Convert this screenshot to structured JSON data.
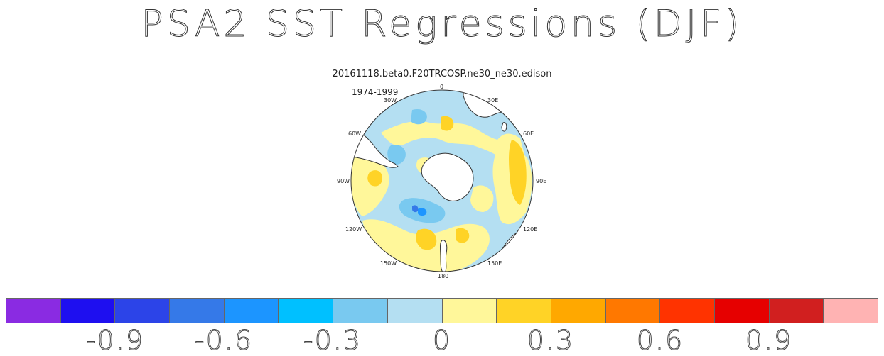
{
  "title": "PSA2 SST Regressions (DJF)",
  "subtitle": "20161118.beta0.F20TRCOSP.ne30_ne30.edison",
  "period": "1974-1999",
  "longitude_labels": {
    "lon_0": "0",
    "lon_30e": "30E",
    "lon_60e": "60E",
    "lon_90e": "90E",
    "lon_120e": "120E",
    "lon_150e": "150E",
    "lon_180": "180",
    "lon_150w": "150W",
    "lon_120w": "120W",
    "lon_90w": "90W",
    "lon_60w": "60W",
    "lon_30w": "30W"
  },
  "colorbar": {
    "colors": [
      "#8a2be2",
      "#1e0ff0",
      "#2c44e8",
      "#3579e8",
      "#1c95ff",
      "#00c0ff",
      "#79c9f0",
      "#b4dff2",
      "#fff79a",
      "#ffd326",
      "#ffa800",
      "#ff7800",
      "#ff3300",
      "#e60000",
      "#d11f1f",
      "#ffb3b3"
    ],
    "labels": [
      "-0.9",
      "-0.6",
      "-0.3",
      "0",
      "0.3",
      "0.6",
      "0.9"
    ]
  },
  "map": {
    "projection": "south polar stereographic",
    "land_color": "#ffffff",
    "coastline_color": "#333333"
  }
}
